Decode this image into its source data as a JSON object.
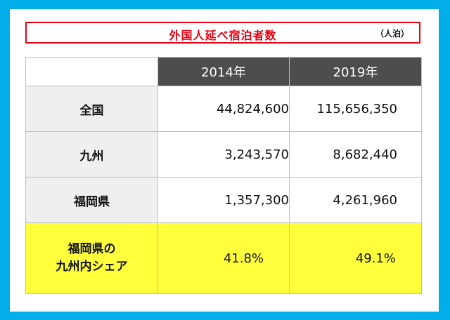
{
  "title": "外国人延べ宿泊者数",
  "unit": "（人泊）",
  "table": {
    "columns": [
      "2014年",
      "2019年"
    ],
    "rows": [
      {
        "label": "全国",
        "values": [
          "44,824,600",
          "115,656,350"
        ]
      },
      {
        "label": "九州",
        "values": [
          "3,243,570",
          "8,682,440"
        ]
      },
      {
        "label": "福岡県",
        "values": [
          "1,357,300",
          "4,261,960"
        ]
      }
    ],
    "share_row": {
      "label_line1": "福岡県の",
      "label_line2": "九州内シェア",
      "values": [
        "41.8%",
        "49.1%"
      ]
    }
  },
  "colors": {
    "frame": "#00aeea",
    "title_border": "#e60012",
    "header_bg": "#4d4d4d",
    "label_bg": "#efefef",
    "highlight_bg": "#ffff3c"
  }
}
